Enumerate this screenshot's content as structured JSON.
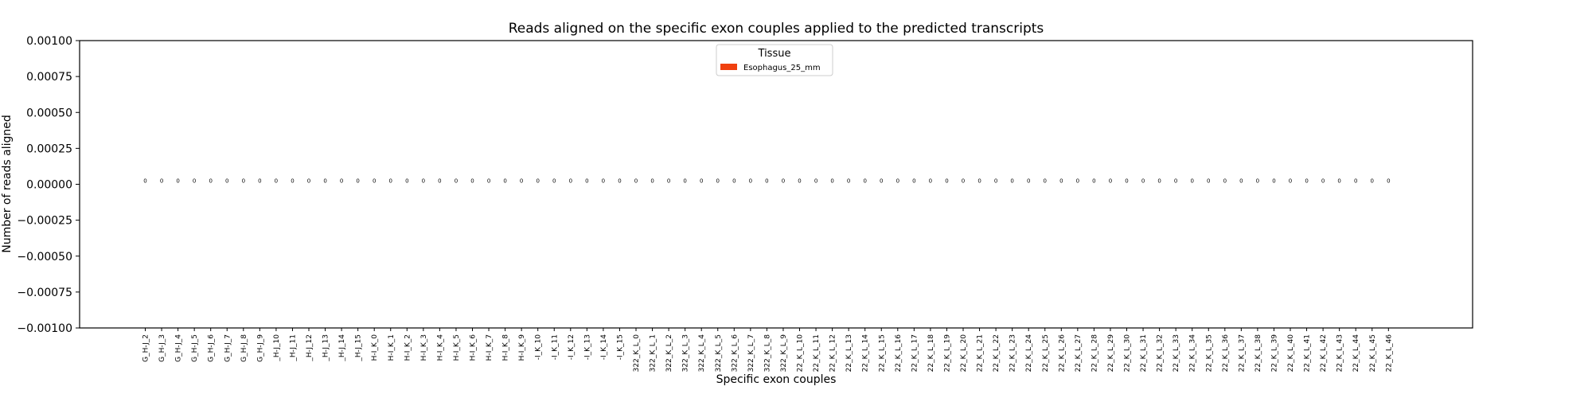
{
  "chart_data": {
    "type": "bar",
    "title": "Reads aligned on the specific exon couples applied to the predicted transcripts",
    "xlabel": "Specific exon couples",
    "ylabel": "Number of reads aligned",
    "ylim": [
      -0.001,
      0.001
    ],
    "yticks": [
      "0.00100",
      "0.00075",
      "0.00050",
      "0.00025",
      "0.00000",
      "−0.00025",
      "−0.00050",
      "−0.00075",
      "−0.00100"
    ],
    "ytick_values": [
      0.001,
      0.00075,
      0.0005,
      0.00025,
      0,
      -0.00025,
      -0.0005,
      -0.00075,
      -0.001
    ],
    "legend": {
      "title": "Tissue",
      "placement": "top-center",
      "entries": [
        {
          "name": "Esophagus_25_mm",
          "color": "#f0400f"
        }
      ]
    },
    "categories": [
      "G_H-J_2",
      "G_H-J_3",
      "G_H-J_4",
      "G_H-J_5",
      "G_H-J_6",
      "G_H-J_7",
      "G_H-J_8",
      "G_H-J_9",
      "_H-J_10",
      "_H-J_11",
      "_H-J_12",
      "_H-J_13",
      "_H-J_14",
      "_H-J_15",
      "H-I_K_0",
      "H-I_K_1",
      "H-I_K_2",
      "H-I_K_3",
      "H-I_K_4",
      "H-I_K_5",
      "H-I_K_6",
      "H-I_K_7",
      "H-I_K_8",
      "H-I_K_9",
      "-I_K_10",
      "-I_K_11",
      "-I_K_12",
      "-I_K_13",
      "-I_K_14",
      "-I_K_15",
      "322_K_L_0",
      "322_K_L_1",
      "322_K_L_2",
      "322_K_L_3",
      "322_K_L_4",
      "322_K_L_5",
      "322_K_L_6",
      "322_K_L_7",
      "322_K_L_8",
      "322_K_L_9",
      "22_K_L_10",
      "22_K_L_11",
      "22_K_L_12",
      "22_K_L_13",
      "22_K_L_14",
      "22_K_L_15",
      "22_K_L_16",
      "22_K_L_17",
      "22_K_L_18",
      "22_K_L_19",
      "22_K_L_20",
      "22_K_L_21",
      "22_K_L_22",
      "22_K_L_23",
      "22_K_L_24",
      "22_K_L_25",
      "22_K_L_26",
      "22_K_L_27",
      "22_K_L_28",
      "22_K_L_29",
      "22_K_L_30",
      "22_K_L_31",
      "22_K_L_32",
      "22_K_L_33",
      "22_K_L_34",
      "22_K_L_35",
      "22_K_L_36",
      "22_K_L_37",
      "22_K_L_38",
      "22_K_L_39",
      "22_K_L_40",
      "22_K_L_41",
      "22_K_L_42",
      "22_K_L_43",
      "22_K_L_44",
      "22_K_L_45",
      "22_K_L_46"
    ],
    "series": [
      {
        "name": "Esophagus_25_mm",
        "color": "#f0400f",
        "values": [
          0,
          0,
          0,
          0,
          0,
          0,
          0,
          0,
          0,
          0,
          0,
          0,
          0,
          0,
          0,
          0,
          0,
          0,
          0,
          0,
          0,
          0,
          0,
          0,
          0,
          0,
          0,
          0,
          0,
          0,
          0,
          0,
          0,
          0,
          0,
          0,
          0,
          0,
          0,
          0,
          0,
          0,
          0,
          0,
          0,
          0,
          0,
          0,
          0,
          0,
          0,
          0,
          0,
          0,
          0,
          0,
          0,
          0,
          0,
          0,
          0,
          0,
          0,
          0,
          0,
          0,
          0,
          0,
          0,
          0,
          0,
          0,
          0,
          0,
          0,
          0,
          0
        ],
        "data_labels": [
          "0",
          "0",
          "0",
          "0",
          "0",
          "0",
          "0",
          "0",
          "0",
          "0",
          "0",
          "0",
          "0",
          "0",
          "0",
          "0",
          "0",
          "0",
          "0",
          "0",
          "0",
          "0",
          "0",
          "0",
          "0",
          "0",
          "0",
          "0",
          "0",
          "0",
          "0",
          "0",
          "0",
          "0",
          "0",
          "0",
          "0",
          "0",
          "0",
          "0",
          "0",
          "0",
          "0",
          "0",
          "0",
          "0",
          "0",
          "0",
          "0",
          "0",
          "0",
          "0",
          "0",
          "0",
          "0",
          "0",
          "0",
          "0",
          "0",
          "0",
          "0",
          "0",
          "0",
          "0",
          "0",
          "0",
          "0",
          "0",
          "0",
          "0",
          "0",
          "0",
          "0",
          "0",
          "0",
          "0",
          "0"
        ]
      }
    ]
  }
}
